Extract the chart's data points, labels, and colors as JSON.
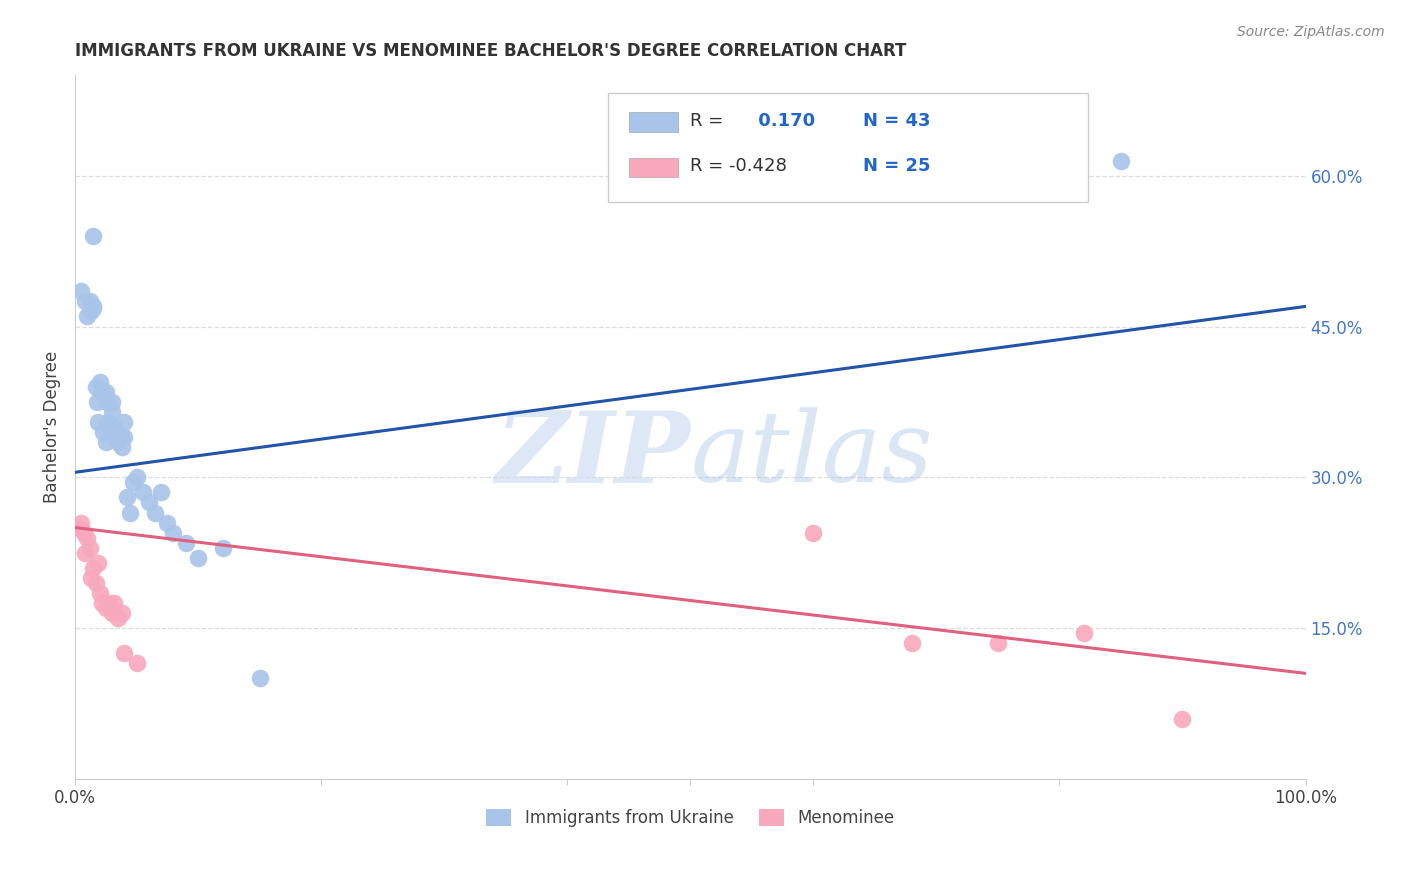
{
  "title": "IMMIGRANTS FROM UKRAINE VS MENOMINEE BACHELOR'S DEGREE CORRELATION CHART",
  "source": "Source: ZipAtlas.com",
  "ylabel": "Bachelor's Degree",
  "right_yticks": [
    "60.0%",
    "45.0%",
    "30.0%",
    "15.0%"
  ],
  "right_ytick_vals": [
    0.6,
    0.45,
    0.3,
    0.15
  ],
  "ukraine_R": 0.17,
  "ukraine_N": 43,
  "menominee_R": -0.428,
  "menominee_N": 25,
  "ukraine_color": "#a8c4e8",
  "ukraine_line_color": "#2255aa",
  "menominee_color": "#f8a8bc",
  "menominee_line_color": "#e06080",
  "background_color": "#ffffff",
  "title_color": "#333333",
  "source_color": "#888888",
  "right_axis_color": "#4477cc",
  "grid_color": "#dddddd",
  "ukraine_x": [
    0.005,
    0.008,
    0.01,
    0.012,
    0.013,
    0.015,
    0.015,
    0.017,
    0.018,
    0.019,
    0.02,
    0.022,
    0.023,
    0.025,
    0.025,
    0.026,
    0.027,
    0.028,
    0.03,
    0.03,
    0.032,
    0.033,
    0.035,
    0.037,
    0.038,
    0.04,
    0.04,
    0.042,
    0.045,
    0.047,
    0.05,
    0.055,
    0.06,
    0.065,
    0.07,
    0.075,
    0.08,
    0.09,
    0.1,
    0.12,
    0.15,
    0.015,
    0.85
  ],
  "ukraine_y": [
    0.485,
    0.475,
    0.46,
    0.475,
    0.465,
    0.47,
    0.468,
    0.39,
    0.375,
    0.355,
    0.395,
    0.385,
    0.345,
    0.335,
    0.385,
    0.375,
    0.355,
    0.35,
    0.375,
    0.365,
    0.35,
    0.34,
    0.335,
    0.34,
    0.33,
    0.355,
    0.34,
    0.28,
    0.265,
    0.295,
    0.3,
    0.285,
    0.275,
    0.265,
    0.285,
    0.255,
    0.245,
    0.235,
    0.22,
    0.23,
    0.1,
    0.54,
    0.615
  ],
  "menominee_x": [
    0.003,
    0.005,
    0.007,
    0.008,
    0.01,
    0.012,
    0.013,
    0.015,
    0.017,
    0.019,
    0.02,
    0.022,
    0.025,
    0.028,
    0.03,
    0.032,
    0.035,
    0.038,
    0.04,
    0.05,
    0.6,
    0.68,
    0.75,
    0.82,
    0.9
  ],
  "menominee_y": [
    0.25,
    0.255,
    0.245,
    0.225,
    0.24,
    0.23,
    0.2,
    0.21,
    0.195,
    0.215,
    0.185,
    0.175,
    0.17,
    0.175,
    0.165,
    0.175,
    0.16,
    0.165,
    0.125,
    0.115,
    0.245,
    0.135,
    0.135,
    0.145,
    0.06
  ],
  "ukraine_line_x0": 0.0,
  "ukraine_line_x1": 1.0,
  "ukraine_line_y0": 0.305,
  "ukraine_line_y1": 0.47,
  "menominee_line_x0": 0.0,
  "menominee_line_x1": 1.0,
  "menominee_line_y0": 0.25,
  "menominee_line_y1": 0.105,
  "xlim": [
    0.0,
    1.0
  ],
  "ylim": [
    0.0,
    0.7
  ],
  "legend_R1": "R =",
  "legend_V1": "0.170",
  "legend_N1": "N = 43",
  "legend_R2": "R = -0.428",
  "legend_V2": "-0.428",
  "legend_N2": "N = 25"
}
